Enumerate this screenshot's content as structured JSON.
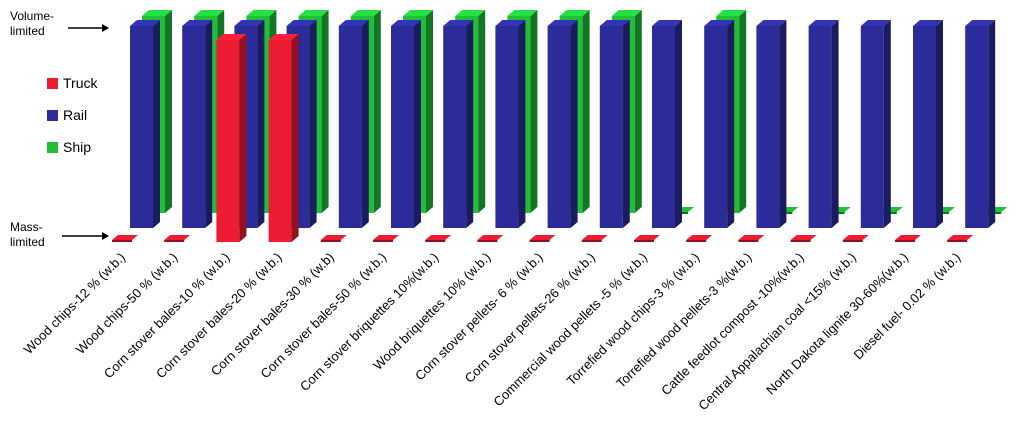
{
  "chart_data": {
    "type": "bar",
    "title": "",
    "xlabel": "",
    "ylabel": "",
    "y_levels": [
      "Mass-limited",
      "Volume-limited"
    ],
    "legend": {
      "placement": "left",
      "entries": [
        {
          "name": "Truck",
          "color": "#ee1c32"
        },
        {
          "name": "Rail",
          "color": "#2b2b9a"
        },
        {
          "name": "Ship",
          "color": "#1fbf3a"
        }
      ]
    },
    "categories": [
      "Wood chips-12 % (w.b.)",
      "Wood chips-50 % (w.b.)",
      "Corn stover bales-10 % (w.b.)",
      "Corn stover bales-20 % (w.b.)",
      "Corn stover bales-30 % (w.b)",
      "Corn stover bales-50 % (w.b.)",
      "Corn stover briquettes 10%(w.b.)",
      "Wood briquettes 10% (w.b.)",
      "Corn stover pellets- 6 % (w.b.)",
      "Corn stover pellets-26 % (w.b.)",
      "Commercial wood pellets -5 % (w.b.)",
      "Torrefied wood chips-3 % (w.b.)",
      "Torrefied wood pellets-3 %(w.b.)",
      "Cattle feedlot compost -10%(w.b.)",
      "Central Appalachian coal <15% (w.b.)",
      "North Dakota lignite 30-60%(w.b.)",
      "Diesel fuel- 0.02 % (w.b.)"
    ],
    "series": [
      {
        "name": "Truck",
        "values": [
          0,
          0,
          1,
          1,
          0,
          0,
          0,
          0,
          0,
          0,
          0,
          0,
          0,
          0,
          0,
          0,
          0
        ]
      },
      {
        "name": "Rail",
        "values": [
          1,
          1,
          1,
          1,
          1,
          1,
          1,
          1,
          1,
          1,
          1,
          1,
          1,
          1,
          1,
          1,
          1
        ]
      },
      {
        "name": "Ship",
        "values": [
          1,
          1,
          1,
          1,
          1,
          1,
          1,
          1,
          1,
          1,
          0,
          1,
          0,
          0,
          0,
          0,
          0
        ]
      }
    ],
    "ylim": [
      0,
      1
    ]
  }
}
